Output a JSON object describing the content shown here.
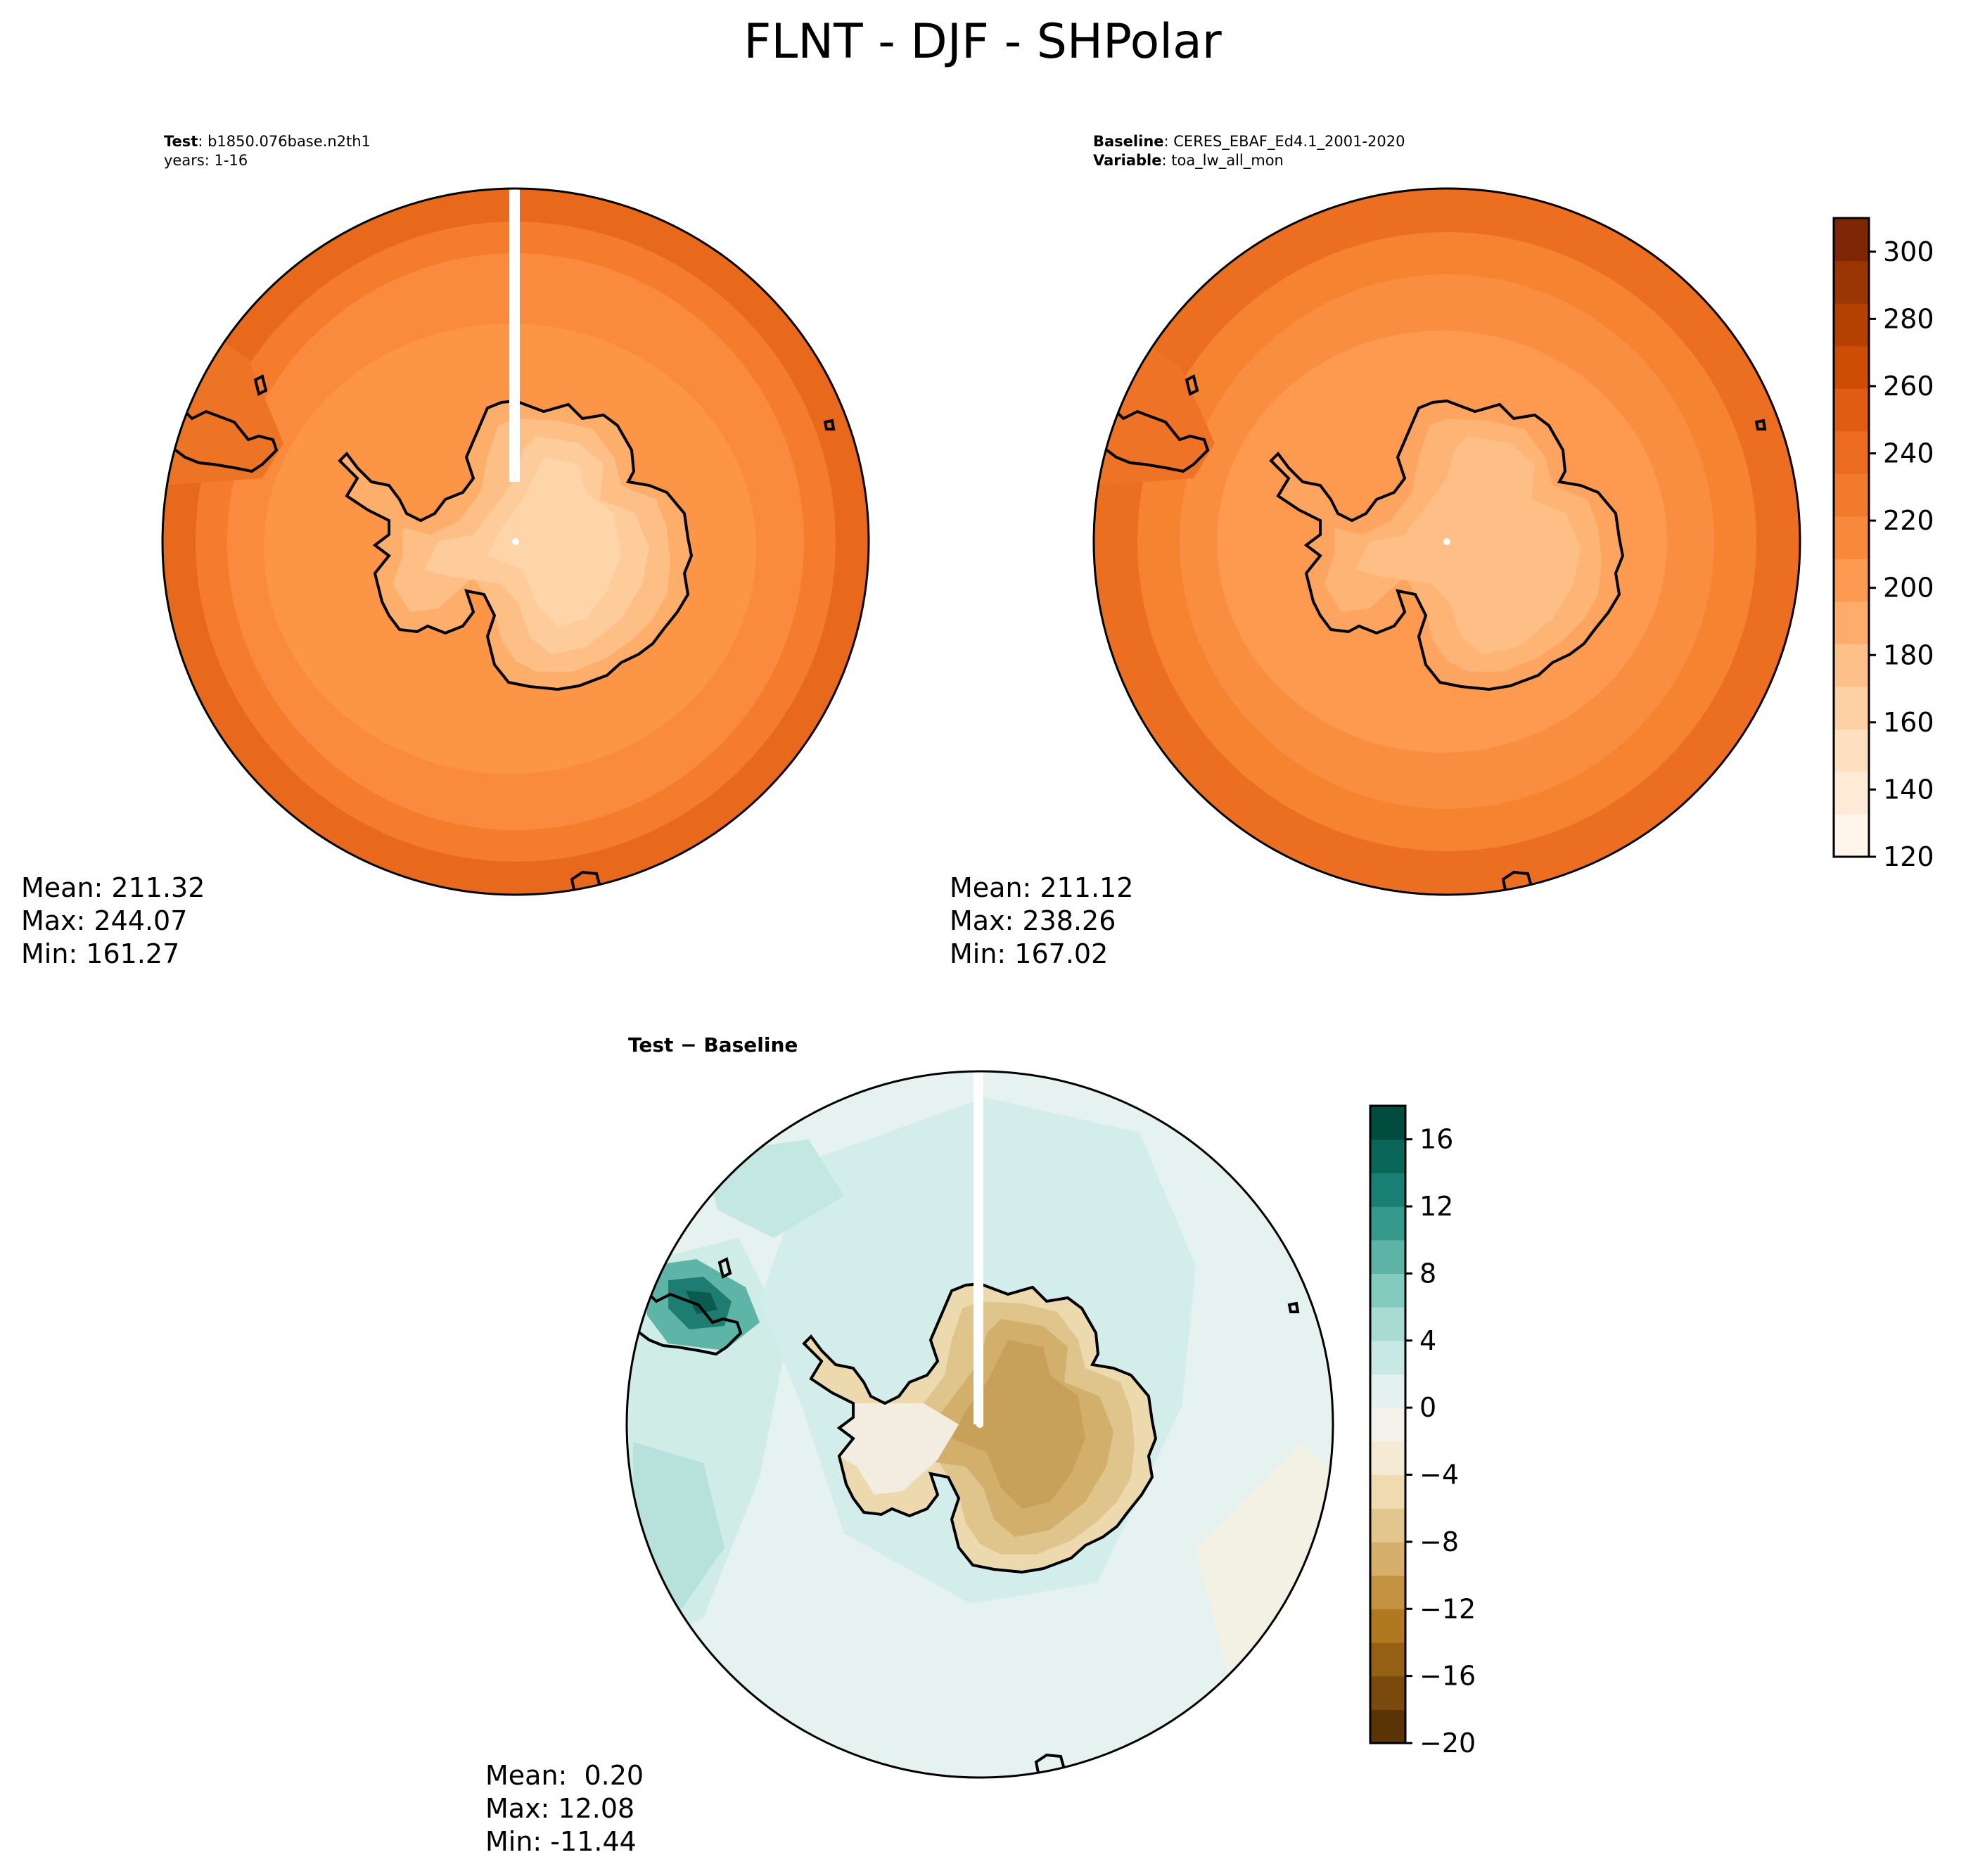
{
  "figure": {
    "title": "FLNT - DJF - SHPolar"
  },
  "colors": {
    "orange_ramp": [
      "#fff5eb",
      "#feead6",
      "#fee0c0",
      "#fdd1a4",
      "#fdc088",
      "#fdac6c",
      "#fd9a52",
      "#f8883c",
      "#f27a2b",
      "#eb6c1f",
      "#e05c12",
      "#cd4c06",
      "#b54102",
      "#9a3603",
      "#7f2704"
    ],
    "diverging_ramp": [
      "#5a3307",
      "#7a4a0c",
      "#956014",
      "#b0791f",
      "#c49341",
      "#d6b06a",
      "#e3c68d",
      "#eedcb0",
      "#f5ebd4",
      "#f3f1ea",
      "#e4f1ef",
      "#c7e9e4",
      "#a8dcd3",
      "#84cbbf",
      "#5cb3a6",
      "#35998c",
      "#1a7f73",
      "#0a6658",
      "#004d40"
    ],
    "coast": "#000000"
  },
  "chart_data": [
    {
      "type": "heatmap",
      "panel": "test",
      "label_bold": "Test",
      "label_text": ": b1850.076base.n2th1",
      "label_line2": "years: 1-16",
      "projection": "south polar stereographic",
      "stats": {
        "mean": "Mean: 211.32",
        "max": "Max: 244.07",
        "min": "Min: 161.27"
      },
      "contour_levels": [
        120,
        130,
        140,
        150,
        160,
        170,
        180,
        190,
        200,
        210,
        220,
        230,
        240,
        250,
        260,
        270,
        280,
        290,
        300,
        310
      ]
    },
    {
      "type": "heatmap",
      "panel": "baseline",
      "label_bold": "Baseline",
      "label_text": ": CERES_EBAF_Ed4.1_2001-2020",
      "label_bold2": "Variable",
      "label_text2": ": toa_lw_all_mon",
      "projection": "south polar stereographic",
      "stats": {
        "mean": "Mean: 211.12",
        "max": "Max: 238.26",
        "min": "Min: 167.02"
      },
      "colorbar": {
        "vmin": 120,
        "vmax": 310,
        "ticks": [
          120,
          140,
          160,
          180,
          200,
          220,
          240,
          260,
          280,
          300
        ],
        "tick_labels": [
          "120",
          "140",
          "160",
          "180",
          "200",
          "220",
          "240",
          "260",
          "280",
          "300"
        ]
      }
    },
    {
      "type": "heatmap",
      "panel": "difference",
      "label": "Test − Baseline",
      "projection": "south polar stereographic",
      "stats": {
        "mean": "Mean:  0.20",
        "max": "Max: 12.08",
        "min": "Min: -11.44"
      },
      "colorbar": {
        "vmin": -20,
        "vmax": 18,
        "ticks": [
          -20,
          -16,
          -12,
          -8,
          -4,
          0,
          4,
          8,
          12,
          16
        ],
        "tick_labels": [
          "−20",
          "−16",
          "−12",
          "−8",
          "−4",
          "0",
          "4",
          "8",
          "12",
          "16"
        ]
      }
    }
  ]
}
